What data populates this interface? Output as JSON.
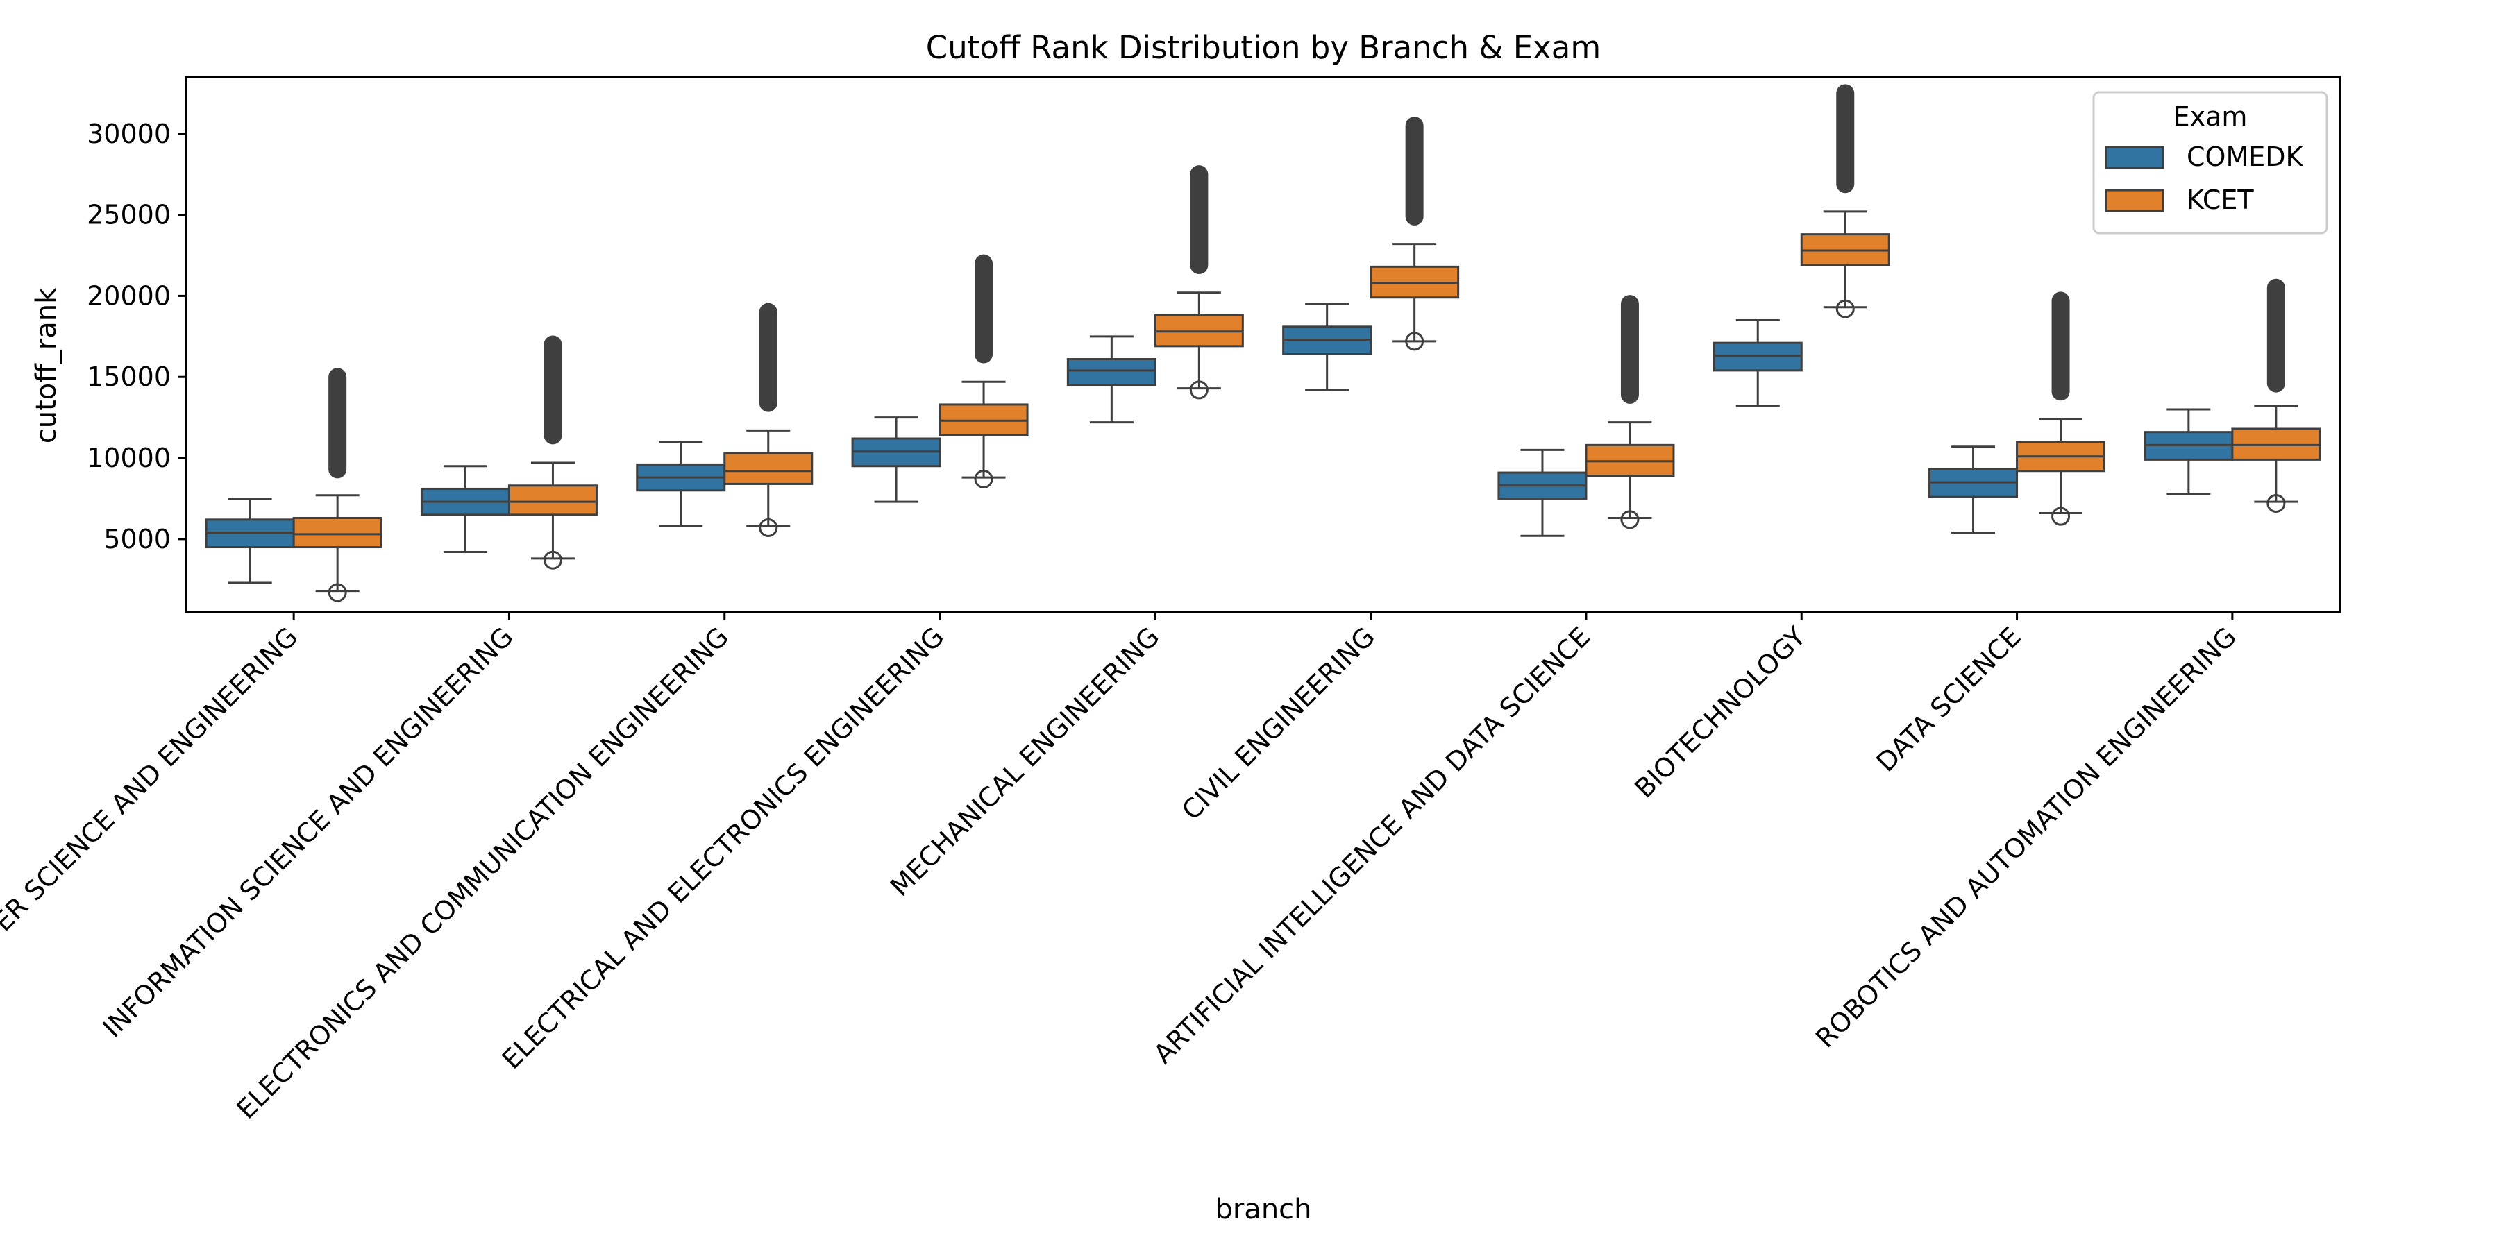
{
  "chart_data": {
    "type": "box",
    "title": "Cutoff Rank Distribution by Branch & Exam",
    "xlabel": "branch",
    "ylabel": "cutoff_rank",
    "ylim": [
      500,
      33500
    ],
    "yticks": [
      5000,
      10000,
      15000,
      20000,
      25000,
      30000
    ],
    "categories": [
      "COMPUTER SCIENCE AND ENGINEERING",
      "INFORMATION SCIENCE AND ENGINEERING",
      "ELECTRONICS AND COMMUNICATION ENGINEERING",
      "ELECTRICAL AND ELECTRONICS ENGINEERING",
      "MECHANICAL ENGINEERING",
      "CIVIL ENGINEERING",
      "ARTIFICIAL INTELLIGENCE AND DATA SCIENCE",
      "BIOTECHNOLOGY",
      "DATA SCIENCE",
      "ROBOTICS AND AUTOMATION ENGINEERING"
    ],
    "legend": {
      "title": "Exam",
      "position": "top-right"
    },
    "grid": false,
    "series": [
      {
        "name": "COMEDK",
        "color": "#3274a1",
        "boxes": [
          {
            "whislo": 2300,
            "q1": 4500,
            "med": 5400,
            "q3": 6200,
            "whishi": 7500,
            "fliers_low": [],
            "fliers_high_range": null
          },
          {
            "whislo": 4200,
            "q1": 6500,
            "med": 7300,
            "q3": 8100,
            "whishi": 9500,
            "fliers_low": [],
            "fliers_high_range": null
          },
          {
            "whislo": 5800,
            "q1": 8000,
            "med": 8800,
            "q3": 9600,
            "whishi": 11000,
            "fliers_low": [],
            "fliers_high_range": null
          },
          {
            "whislo": 7300,
            "q1": 9500,
            "med": 10400,
            "q3": 11200,
            "whishi": 12500,
            "fliers_low": [],
            "fliers_high_range": null
          },
          {
            "whislo": 12200,
            "q1": 14500,
            "med": 15400,
            "q3": 16100,
            "whishi": 17500,
            "fliers_low": [],
            "fliers_high_range": null
          },
          {
            "whislo": 14200,
            "q1": 16400,
            "med": 17300,
            "q3": 18100,
            "whishi": 19500,
            "fliers_low": [],
            "fliers_high_range": null
          },
          {
            "whislo": 5200,
            "q1": 7500,
            "med": 8300,
            "q3": 9100,
            "whishi": 10500,
            "fliers_low": [],
            "fliers_high_range": null
          },
          {
            "whislo": 13200,
            "q1": 15400,
            "med": 16300,
            "q3": 17100,
            "whishi": 18500,
            "fliers_low": [],
            "fliers_high_range": null
          },
          {
            "whislo": 5400,
            "q1": 7600,
            "med": 8500,
            "q3": 9300,
            "whishi": 10700,
            "fliers_low": [],
            "fliers_high_range": null
          },
          {
            "whislo": 7800,
            "q1": 9900,
            "med": 10800,
            "q3": 11600,
            "whishi": 13000,
            "fliers_low": [],
            "fliers_high_range": null
          }
        ]
      },
      {
        "name": "KCET",
        "color": "#e1812c",
        "boxes": [
          {
            "whislo": 1800,
            "q1": 4500,
            "med": 5300,
            "q3": 6300,
            "whishi": 7700,
            "fliers_low": [
              1700
            ],
            "fliers_high_range": [
              9300,
              15000
            ]
          },
          {
            "whislo": 3800,
            "q1": 6500,
            "med": 7300,
            "q3": 8300,
            "whishi": 9700,
            "fliers_low": [
              3700
            ],
            "fliers_high_range": [
              11400,
              17000
            ]
          },
          {
            "whislo": 5800,
            "q1": 8400,
            "med": 9200,
            "q3": 10300,
            "whishi": 11700,
            "fliers_low": [
              5700
            ],
            "fliers_high_range": [
              13400,
              19000
            ]
          },
          {
            "whislo": 8800,
            "q1": 11400,
            "med": 12300,
            "q3": 13300,
            "whishi": 14700,
            "fliers_low": [
              8700
            ],
            "fliers_high_range": [
              16400,
              22000
            ]
          },
          {
            "whislo": 14300,
            "q1": 16900,
            "med": 17800,
            "q3": 18800,
            "whishi": 20200,
            "fliers_low": [
              14200
            ],
            "fliers_high_range": [
              21900,
              27500
            ]
          },
          {
            "whislo": 17200,
            "q1": 19900,
            "med": 20800,
            "q3": 21800,
            "whishi": 23200,
            "fliers_low": [
              17200
            ],
            "fliers_high_range": [
              24900,
              30500
            ]
          },
          {
            "whislo": 6300,
            "q1": 8900,
            "med": 9800,
            "q3": 10800,
            "whishi": 12200,
            "fliers_low": [
              6200
            ],
            "fliers_high_range": [
              13900,
              19500
            ]
          },
          {
            "whislo": 19300,
            "q1": 21900,
            "med": 22800,
            "q3": 23800,
            "whishi": 25200,
            "fliers_low": [
              19200
            ],
            "fliers_high_range": [
              26900,
              32500
            ]
          },
          {
            "whislo": 6600,
            "q1": 9200,
            "med": 10100,
            "q3": 11000,
            "whishi": 12400,
            "fliers_low": [
              6400
            ],
            "fliers_high_range": [
              14100,
              19700
            ]
          },
          {
            "whislo": 7300,
            "q1": 9900,
            "med": 10800,
            "q3": 11800,
            "whishi": 13200,
            "fliers_low": [
              7200
            ],
            "fliers_high_range": [
              14600,
              20500
            ]
          }
        ]
      }
    ]
  }
}
